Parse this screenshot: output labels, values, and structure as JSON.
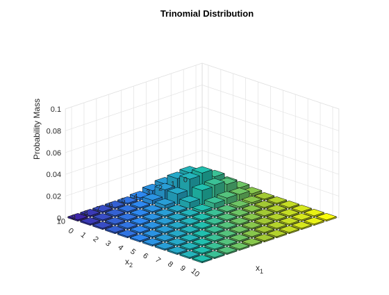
{
  "chart_data": {
    "type": "bar3",
    "title": "Trinomial Distribution",
    "xlabel": "x",
    "xlabel_sub": "1",
    "ylabel": "x",
    "ylabel_sub": "2",
    "zlabel": "Probability Mass",
    "x_ticks": [
      "0",
      "1",
      "2",
      "3",
      "4",
      "5",
      "6",
      "7",
      "8",
      "9",
      "10"
    ],
    "y_ticks": [
      "0",
      "1",
      "2",
      "3",
      "4",
      "5",
      "6",
      "7",
      "8",
      "9",
      "10"
    ],
    "z_ticks": [
      "0",
      "0.02",
      "0.04",
      "0.06",
      "0.08",
      "0.1"
    ],
    "zlim": [
      0,
      0.1
    ],
    "grid": true,
    "colormap": "parula (colored by x1 + x2)",
    "colormap_stops": [
      "#3e26a8",
      "#2e88f0",
      "#21bfae",
      "#a2c934",
      "#f9fb0e"
    ],
    "n": 10,
    "p": [
      0.2,
      0.3,
      0.5
    ],
    "x": [
      0,
      1,
      2,
      3,
      4,
      5,
      6,
      7,
      8,
      9,
      10
    ],
    "y": [
      0,
      1,
      2,
      3,
      4,
      5,
      6,
      7,
      8,
      9,
      10
    ],
    "z_matrix": [
      [
        0.00098,
        0.00293,
        0.00439,
        0.00391,
        0.00228,
        0.00091,
        0.00025,
        5e-05,
        1e-05,
        0.0,
        0.0
      ],
      [
        0.00391,
        0.01055,
        0.01406,
        0.01094,
        0.00547,
        0.00182,
        0.00041,
        6e-05,
        1e-05,
        0.0,
        0.0
      ],
      [
        0.00703,
        0.01771,
        0.02126,
        0.01417,
        0.00604,
        0.00169,
        0.0003,
        3e-05,
        0.0,
        0.0,
        0.0
      ],
      [
        0.00751,
        0.01623,
        0.01948,
        0.013,
        0.00487,
        0.00097,
        8e-05,
        0.0,
        0.0,
        0.0,
        0.0
      ],
      [
        0.00517,
        0.00974,
        0.00974,
        0.00578,
        0.00183,
        0.00022,
        0.0,
        0.0,
        0.0,
        0.0,
        0.0
      ],
      [
        0.00241,
        0.00394,
        0.00316,
        0.00134,
        0.00025,
        0.0,
        0.0,
        0.0,
        0.0,
        0.0,
        0.0
      ],
      [
        0.00075,
        0.00102,
        0.00062,
        0.00016,
        0.0,
        0.0,
        0.0,
        0.0,
        0.0,
        0.0,
        0.0
      ],
      [
        0.00015,
        0.00017,
        6e-05,
        0.0,
        0.0,
        0.0,
        0.0,
        0.0,
        0.0,
        0.0,
        0.0
      ],
      [
        2e-05,
        1e-05,
        0.0,
        0.0,
        0.0,
        0.0,
        0.0,
        0.0,
        0.0,
        0.0,
        0.0
      ],
      [
        0.0,
        0.0,
        0.0,
        0.0,
        0.0,
        0.0,
        0.0,
        0.0,
        0.0,
        0.0,
        0.0
      ],
      [
        0.0,
        0.0,
        0.0,
        0.0,
        0.0,
        0.0,
        0.0,
        0.0,
        0.0,
        0.0,
        0.0
      ]
    ]
  }
}
